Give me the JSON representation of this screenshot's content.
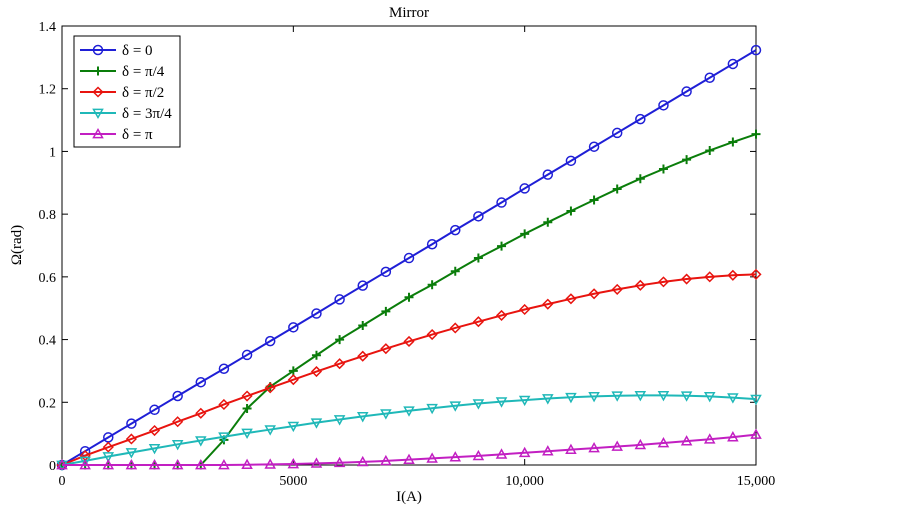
{
  "chart_data": {
    "type": "line",
    "title": "Mirror",
    "xlabel": "I(A)",
    "ylabel": "Ω(rad)",
    "xlim": [
      0,
      15000
    ],
    "ylim": [
      0,
      1.4
    ],
    "xticks": [
      0,
      5000,
      10000,
      15000
    ],
    "xtick_labels": [
      "0",
      "5000",
      "10,000",
      "15,000"
    ],
    "yticks": [
      0,
      0.2,
      0.4,
      0.6,
      0.8,
      1,
      1.2,
      1.4
    ],
    "ytick_labels": [
      "0",
      "0.2",
      "0.4",
      "0.6",
      "0.8",
      "1",
      "1.2",
      "1.4"
    ],
    "grid": false,
    "legend_position": "top-left",
    "series": [
      {
        "name": "δ = 0",
        "color": "#1f1fd6",
        "marker": "circle",
        "x": [
          0,
          500,
          1000,
          1500,
          2000,
          2500,
          3000,
          3500,
          4000,
          4500,
          5000,
          5500,
          6000,
          6500,
          7000,
          7500,
          8000,
          8500,
          9000,
          9500,
          10000,
          10500,
          11000,
          11500,
          12000,
          12500,
          13000,
          13500,
          14000,
          14500,
          15000
        ],
        "y": [
          0,
          0.044,
          0.088,
          0.132,
          0.176,
          0.22,
          0.264,
          0.307,
          0.351,
          0.395,
          0.439,
          0.483,
          0.528,
          0.572,
          0.616,
          0.66,
          0.704,
          0.749,
          0.793,
          0.837,
          0.882,
          0.926,
          0.97,
          1.015,
          1.059,
          1.103,
          1.147,
          1.191,
          1.235,
          1.279,
          1.323
        ]
      },
      {
        "name": "δ = π/4",
        "color": "#0a7d0a",
        "marker": "plus",
        "x": [
          0,
          500,
          1000,
          1500,
          2000,
          2500,
          3000,
          3500,
          4000,
          4500,
          5000,
          5500,
          6000,
          6500,
          7000,
          7500,
          8000,
          8500,
          9000,
          9500,
          10000,
          10500,
          11000,
          11500,
          12000,
          12500,
          13000,
          13500,
          14000,
          14500,
          15000
        ],
        "y": [
          0,
          0,
          0,
          0,
          0,
          0,
          0,
          0.08,
          0.18,
          0.25,
          0.3,
          0.35,
          0.4,
          0.445,
          0.49,
          0.535,
          0.575,
          0.618,
          0.66,
          0.698,
          0.737,
          0.774,
          0.81,
          0.845,
          0.88,
          0.913,
          0.944,
          0.974,
          1.003,
          1.03,
          1.055
        ]
      },
      {
        "name": "δ = π/2",
        "color": "#e8140f",
        "marker": "diamond",
        "x": [
          0,
          500,
          1000,
          1500,
          2000,
          2500,
          3000,
          3500,
          4000,
          4500,
          5000,
          5500,
          6000,
          6500,
          7000,
          7500,
          8000,
          8500,
          9000,
          9500,
          10000,
          10500,
          11000,
          11500,
          12000,
          12500,
          13000,
          13500,
          14000,
          14500,
          15000
        ],
        "y": [
          0,
          0.03,
          0.057,
          0.083,
          0.11,
          0.138,
          0.165,
          0.193,
          0.22,
          0.246,
          0.272,
          0.298,
          0.323,
          0.347,
          0.371,
          0.394,
          0.416,
          0.437,
          0.457,
          0.477,
          0.496,
          0.513,
          0.53,
          0.546,
          0.56,
          0.573,
          0.584,
          0.593,
          0.6,
          0.605,
          0.608
        ]
      },
      {
        "name": "δ = 3π/4",
        "color": "#1fb8b8",
        "marker": "triangle-down",
        "x": [
          0,
          500,
          1000,
          1500,
          2000,
          2500,
          3000,
          3500,
          4000,
          4500,
          5000,
          5500,
          6000,
          6500,
          7000,
          7500,
          8000,
          8500,
          9000,
          9500,
          10000,
          10500,
          11000,
          11500,
          12000,
          12500,
          13000,
          13500,
          14000,
          14500,
          15000
        ],
        "y": [
          0,
          0.013,
          0.027,
          0.04,
          0.053,
          0.066,
          0.078,
          0.09,
          0.102,
          0.113,
          0.124,
          0.135,
          0.145,
          0.155,
          0.164,
          0.173,
          0.181,
          0.189,
          0.196,
          0.202,
          0.207,
          0.212,
          0.216,
          0.219,
          0.221,
          0.222,
          0.222,
          0.221,
          0.219,
          0.215,
          0.21
        ]
      },
      {
        "name": "δ = π",
        "color": "#c21fc2",
        "marker": "triangle-up",
        "x": [
          0,
          500,
          1000,
          1500,
          2000,
          2500,
          3000,
          3500,
          4000,
          4500,
          5000,
          5500,
          6000,
          6500,
          7000,
          7500,
          8000,
          8500,
          9000,
          9500,
          10000,
          10500,
          11000,
          11500,
          12000,
          12500,
          13000,
          13500,
          14000,
          14500,
          15000
        ],
        "y": [
          0,
          0,
          0,
          0,
          0,
          0,
          0,
          0,
          0.001,
          0.002,
          0.003,
          0.005,
          0.007,
          0.01,
          0.013,
          0.017,
          0.021,
          0.025,
          0.029,
          0.034,
          0.039,
          0.044,
          0.049,
          0.054,
          0.059,
          0.064,
          0.07,
          0.076,
          0.082,
          0.089,
          0.097
        ]
      }
    ]
  }
}
